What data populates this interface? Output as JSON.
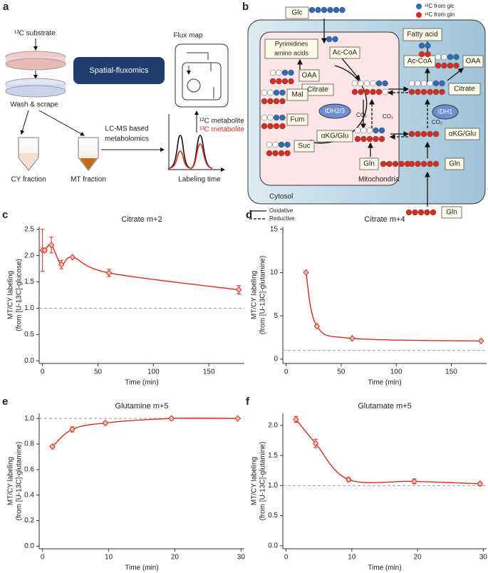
{
  "panel_a": {
    "label": "a",
    "substrate": "¹³C substrate",
    "wash": "Wash & scrape",
    "method": "Spatial-fluxomics",
    "flux_map": "Flux map",
    "legend_12c": "¹²C metabolite",
    "legend_13c": "¹³C metabolite",
    "lcms": [
      "LC-MS based",
      "metabolomics"
    ],
    "cy": "CY fraction",
    "mt": "MT fraction",
    "x_axis": "Labeling time"
  },
  "panel_b": {
    "label": "b",
    "nodes": [
      "Glc",
      "Ac-CoA",
      "OAA",
      "Citrate",
      "Mal",
      "Fum",
      "αKG/Glu",
      "Suc",
      "Gln",
      "Fatty acid",
      "Ac-CoA",
      "OAA",
      "Citrate",
      "αKG/Glu",
      "Gln",
      "Gln"
    ],
    "pyrimidines": [
      "Pyrimidines",
      "amino acids"
    ],
    "enzymes": [
      "IDH2/3",
      "IDH1"
    ],
    "co2": [
      "CO₂",
      "CO₂",
      "CO₂"
    ],
    "compartments": [
      "Mitochondria",
      "Cytosol"
    ],
    "legend": [
      "¹³C from glc",
      "¹³C from gln"
    ],
    "line_legend": [
      "Oxidative",
      "Reductive"
    ]
  },
  "chart_data": [
    {
      "type": "line",
      "panel": "c",
      "title": "Citrate m+2",
      "x_label": "Time (min)",
      "y_label": [
        "MT/CY labeling",
        "(from [U-13C]-glucose)"
      ],
      "x": [
        0,
        2,
        8,
        17,
        27,
        60,
        177
      ],
      "values": [
        2.1,
        2.1,
        2.2,
        1.83,
        1.97,
        1.67,
        1.35
      ],
      "errors": [
        0.4,
        0.03,
        0.15,
        0.08,
        0.02,
        0.07,
        0.08
      ],
      "color": "#d62d20",
      "xlim": [
        -3,
        182
      ],
      "xticks": [
        0,
        50,
        100,
        150
      ],
      "ylim": [
        -0.05,
        2.55
      ],
      "yticks": [
        {
          "value": 0,
          "label": "0.0"
        },
        {
          "value": 0.5,
          "label": "0.5"
        },
        {
          "value": 1,
          "label": "1.0"
        },
        {
          "value": 1.5,
          "label": "1.5"
        },
        {
          "value": 2,
          "label": "2.0"
        },
        {
          "value": 2.5,
          "label": "2.5"
        }
      ],
      "reference_line": 1
    },
    {
      "type": "line",
      "panel": "d",
      "title": "Citrate m+4",
      "x_label": "Time (min)",
      "y_label": [
        "MT/CY labeling",
        "(from [U-13C]-glutamine)"
      ],
      "x": [
        18,
        28,
        60,
        177
      ],
      "values": [
        10,
        3.8,
        2.4,
        2.1
      ],
      "errors": [
        0.1,
        0.1,
        0.1,
        0.1
      ],
      "color": "#d62d20",
      "xlim": [
        -3,
        182
      ],
      "xticks": [
        0,
        50,
        100,
        150
      ],
      "ylim": [
        -0.5,
        15.3
      ],
      "yticks": [
        0,
        5,
        10,
        15
      ],
      "reference_line": 1
    },
    {
      "type": "line",
      "panel": "e",
      "title": "Glutamine m+5",
      "x_label": "Time (min)",
      "y_label": [
        "MT/CY labeling",
        "(from [U-13C]-glutamine)"
      ],
      "x": [
        1.5,
        4.5,
        9.5,
        19.5,
        29.5
      ],
      "values": [
        0.78,
        0.915,
        0.965,
        1.0,
        1.0
      ],
      "errors": [
        0.01,
        0.02,
        0.01,
        0.01,
        0.005
      ],
      "color": "#d62d20",
      "xlim": [
        -0.5,
        30.5
      ],
      "xticks": [
        0,
        10,
        20,
        30
      ],
      "ylim": [
        -0.02,
        1.04
      ],
      "yticks": [
        {
          "value": 0,
          "label": "0.0"
        },
        {
          "value": 0.2,
          "label": "0.2"
        },
        {
          "value": 0.4,
          "label": "0.4"
        },
        {
          "value": 0.6,
          "label": "0.6"
        },
        {
          "value": 0.8,
          "label": "0.8"
        },
        {
          "value": 1,
          "label": "1.0"
        }
      ],
      "reference_line": 1
    },
    {
      "type": "line",
      "panel": "f",
      "title": "Glutamate m+5",
      "x_label": "Time (min)",
      "y_label": [
        "MT/CY labeling",
        "(from [U-13C]-glutamine)"
      ],
      "x": [
        1.5,
        4.5,
        9.5,
        19.5,
        29.5
      ],
      "values": [
        2.1,
        1.7,
        1.1,
        1.07,
        1.03
      ],
      "errors": [
        0.05,
        0.07,
        0.03,
        0.04,
        0.03
      ],
      "color": "#d62d20",
      "xlim": [
        -0.5,
        30.5
      ],
      "xticks": [
        0,
        10,
        20,
        30
      ],
      "ylim": [
        -0.05,
        2.2
      ],
      "yticks": [
        {
          "value": 0,
          "label": "0.0"
        },
        {
          "value": 0.5,
          "label": "0.5"
        },
        {
          "value": 1,
          "label": "1.0"
        },
        {
          "value": 1.5,
          "label": "1.5"
        },
        {
          "value": 2,
          "label": "2.0"
        }
      ],
      "reference_line": 1
    }
  ]
}
